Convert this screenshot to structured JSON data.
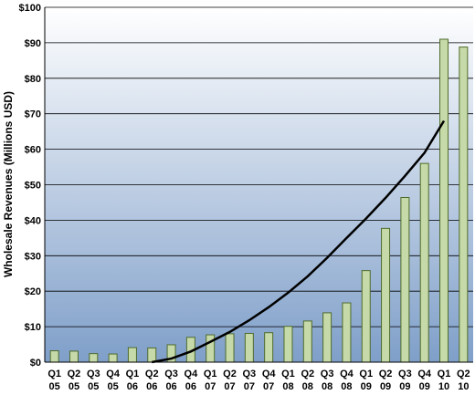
{
  "chart_data": {
    "type": "bar",
    "title": "",
    "xlabel": "",
    "ylabel": "Wholesale Revenues (Millions USD)",
    "ylim": [
      0,
      100
    ],
    "y_ticks": [
      "$0",
      "$10",
      "$20",
      "$30",
      "$40",
      "$50",
      "$60",
      "$70",
      "$80",
      "$90",
      "$100"
    ],
    "grid": true,
    "categories": [
      {
        "q": "Q1",
        "y": "05"
      },
      {
        "q": "Q2",
        "y": "05"
      },
      {
        "q": "Q3",
        "y": "05"
      },
      {
        "q": "Q4",
        "y": "05"
      },
      {
        "q": "Q1",
        "y": "06"
      },
      {
        "q": "Q2",
        "y": "06"
      },
      {
        "q": "Q3",
        "y": "06"
      },
      {
        "q": "Q4",
        "y": "06"
      },
      {
        "q": "Q1",
        "y": "07"
      },
      {
        "q": "Q2",
        "y": "07"
      },
      {
        "q": "Q3",
        "y": "07"
      },
      {
        "q": "Q4",
        "y": "07"
      },
      {
        "q": "Q1",
        "y": "08"
      },
      {
        "q": "Q2",
        "y": "08"
      },
      {
        "q": "Q3",
        "y": "08"
      },
      {
        "q": "Q4",
        "y": "08"
      },
      {
        "q": "Q1",
        "y": "09"
      },
      {
        "q": "Q2",
        "y": "09"
      },
      {
        "q": "Q3",
        "y": "09"
      },
      {
        "q": "Q4",
        "y": "09"
      },
      {
        "q": "Q1",
        "y": "10"
      },
      {
        "q": "Q2",
        "y": "10"
      }
    ],
    "values": [
      3.2,
      3.1,
      2.4,
      2.3,
      4.1,
      4.0,
      4.9,
      7.0,
      7.7,
      8.0,
      8.1,
      8.3,
      10.1,
      11.6,
      13.9,
      16.7,
      25.8,
      37.7,
      46.4,
      56.0,
      91.0,
      88.8
    ],
    "trendline": {
      "type": "polynomial",
      "points": [
        {
          "x": 6,
          "y": 0.0
        },
        {
          "x": 7,
          "y": 1.0
        },
        {
          "x": 8,
          "y": 3.0
        },
        {
          "x": 9,
          "y": 5.7
        },
        {
          "x": 10,
          "y": 8.5
        },
        {
          "x": 11,
          "y": 11.8
        },
        {
          "x": 12,
          "y": 15.5
        },
        {
          "x": 13,
          "y": 19.6
        },
        {
          "x": 14,
          "y": 24.2
        },
        {
          "x": 15,
          "y": 29.4
        },
        {
          "x": 16,
          "y": 35.0
        },
        {
          "x": 17,
          "y": 40.5
        },
        {
          "x": 18,
          "y": 46.3
        },
        {
          "x": 19,
          "y": 52.5
        },
        {
          "x": 20,
          "y": 59.0
        },
        {
          "x": 21,
          "y": 68.0
        }
      ]
    },
    "colors": {
      "bar_fill": "#c6d9a8",
      "bar_stroke": "#4f6b2c",
      "bg_top": "#ffffff",
      "bg_bottom": "#7f9fc9",
      "grid": "#000000",
      "trend": "#000000"
    }
  }
}
